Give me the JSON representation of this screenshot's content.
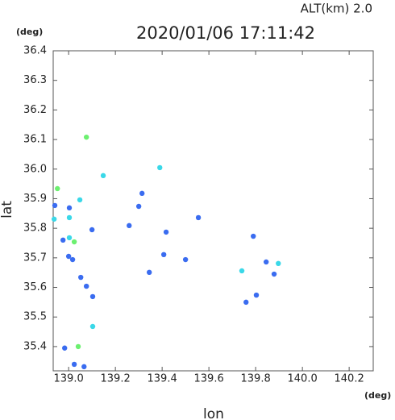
{
  "chart_data": {
    "type": "scatter",
    "title": "2020/01/06 17:11:42",
    "subtitle": "ALT(km) 2.0",
    "x_label": "lon",
    "y_label": "lat",
    "x_unit": "(deg)",
    "y_unit": "(deg)",
    "xlim": [
      138.934,
      140.303
    ],
    "ylim": [
      35.318,
      36.4
    ],
    "xticks": [
      {
        "value": 139,
        "label": "139.0"
      },
      139.2,
      139.4,
      139.6,
      139.8,
      {
        "value": 140,
        "label": "140.0"
      },
      140.2
    ],
    "yticks": [
      35.4,
      35.5,
      35.6,
      35.7,
      35.8,
      35.9,
      {
        "value": 36,
        "label": "36.0"
      },
      36.1,
      36.2,
      36.3,
      36.4
    ],
    "grid": false,
    "series": [
      {
        "color": "#3a6cf0",
        "x": [
          138.941,
          138.976,
          139.0,
          139.017,
          139.003,
          139.1,
          139.052,
          139.076,
          139.103,
          138.983,
          139.024,
          139.066,
          139.314,
          139.3,
          139.417,
          139.345,
          139.555,
          139.79,
          139.759,
          139.845,
          139.879,
          139.803,
          139.5,
          139.407,
          139.259
        ],
        "y": [
          35.877,
          35.76,
          35.705,
          35.694,
          35.869,
          35.795,
          35.634,
          35.604,
          35.569,
          35.395,
          35.34,
          35.332,
          35.918,
          35.874,
          35.787,
          35.651,
          35.836,
          35.773,
          35.55,
          35.686,
          35.645,
          35.574,
          35.694,
          35.711,
          35.809
        ]
      },
      {
        "color": "#3ad8e8",
        "x": [
          138.938,
          139.003,
          139.003,
          139.048,
          139.148,
          139.103,
          139.39,
          139.741,
          139.897
        ],
        "y": [
          35.831,
          35.768,
          35.836,
          35.896,
          35.978,
          35.468,
          36.005,
          35.656,
          35.681
        ]
      },
      {
        "color": "#6cf070",
        "x": [
          138.952,
          139.024,
          139.076,
          139.041
        ],
        "y": [
          35.934,
          35.754,
          36.108,
          35.4
        ]
      }
    ]
  }
}
